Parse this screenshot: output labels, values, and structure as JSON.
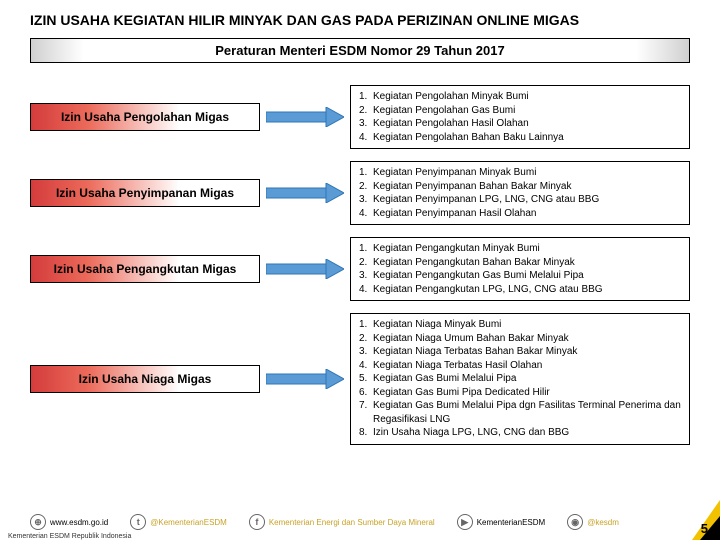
{
  "title": "IZIN USAHA KEGIATAN HILIR MINYAK DAN GAS PADA PERIZINAN ONLINE MIGAS",
  "subtitle": "Peraturan Menteri ESDM Nomor 29 Tahun 2017",
  "arrow_color": "#5b9bd5",
  "rows": [
    {
      "label": "Izin Usaha Pengolahan Migas",
      "items": [
        "Kegiatan Pengolahan Minyak Bumi",
        "Kegiatan Pengolahan Gas Bumi",
        "Kegiatan Pengolahan Hasil Olahan",
        "Kegiatan Pengolahan Bahan Baku Lainnya"
      ]
    },
    {
      "label": "Izin Usaha Penyimpanan Migas",
      "items": [
        "Kegiatan Penyimpanan Minyak Bumi",
        "Kegiatan Penyimpanan Bahan Bakar Minyak",
        "Kegiatan Penyimpanan LPG, LNG, CNG atau BBG",
        "Kegiatan Penyimpanan Hasil Olahan"
      ]
    },
    {
      "label": "Izin Usaha Pengangkutan Migas",
      "items": [
        "Kegiatan Pengangkutan Minyak Bumi",
        "Kegiatan Pengangkutan Bahan Bakar Minyak",
        "Kegiatan Pengangkutan Gas Bumi Melalui Pipa",
        "Kegiatan Pengangkutan LPG, LNG, CNG atau BBG"
      ]
    },
    {
      "label": "Izin Usaha Niaga Migas",
      "items": [
        "Kegiatan Niaga  Minyak Bumi",
        "Kegiatan Niaga Umum Bahan Bakar Minyak",
        "Kegiatan Niaga Terbatas Bahan Bakar Minyak",
        "Kegiatan Niaga Terbatas Hasil Olahan",
        "Kegiatan Gas Bumi Melalui Pipa",
        "Kegiatan Gas Bumi Pipa Dedicated Hilir",
        "Kegiatan Gas Bumi Melalui Pipa dgn Fasilitas Terminal Penerima  dan Regasifikasi LNG",
        "Izin Usaha Niaga LPG, LNG, CNG dan BBG"
      ]
    }
  ],
  "socials": [
    {
      "icon": "globe-icon",
      "glyph": "⊕",
      "text": "www.esdm.go.id",
      "gold": false
    },
    {
      "icon": "twitter-icon",
      "glyph": "t",
      "text": "@KementerianESDM",
      "gold": true
    },
    {
      "icon": "facebook-icon",
      "glyph": "f",
      "text": "Kementerian Energi dan Sumber Daya Mineral",
      "gold": true
    },
    {
      "icon": "youtube-icon",
      "glyph": "▶",
      "text": "KementerianESDM",
      "gold": false
    },
    {
      "icon": "instagram-icon",
      "glyph": "◉",
      "text": "@kesdm",
      "gold": true
    }
  ],
  "page_number": "5",
  "ministry": "Kementerian ESDM Republik Indonesia"
}
